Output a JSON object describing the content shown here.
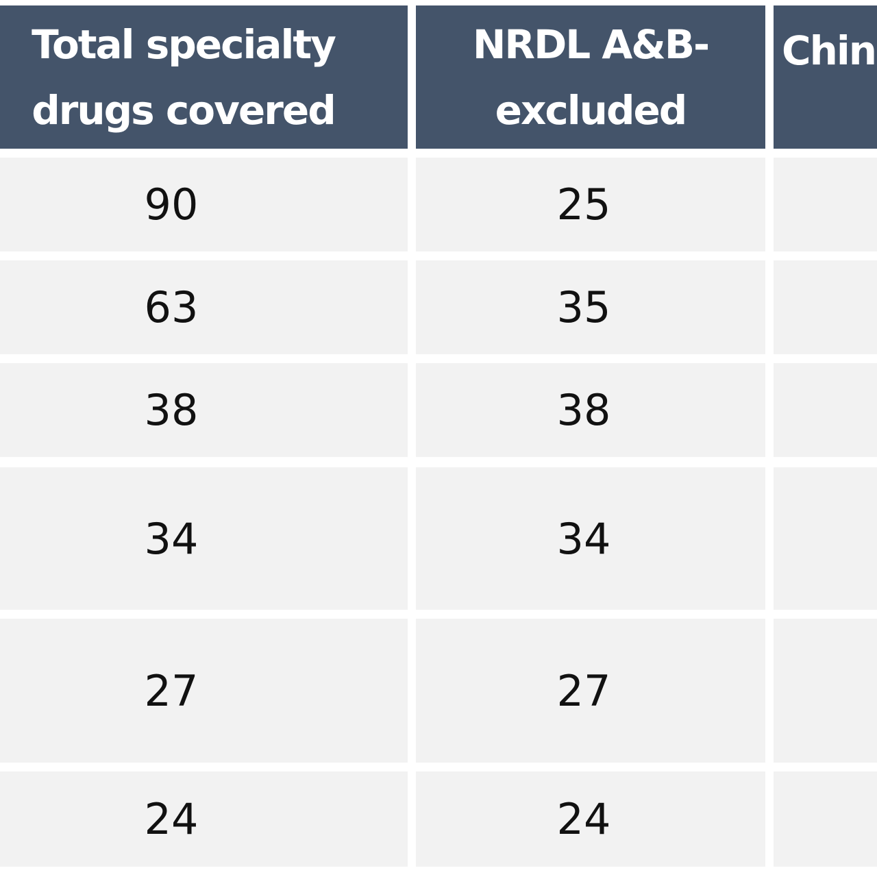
{
  "table": {
    "header": [
      "Total specialty drugs covered",
      "NRDL A&B-excluded",
      "Chin"
    ],
    "rows": [
      [
        90,
        25
      ],
      [
        63,
        35
      ],
      [
        38,
        38
      ],
      [
        34,
        34
      ],
      [
        27,
        27
      ],
      [
        24,
        24
      ]
    ]
  }
}
